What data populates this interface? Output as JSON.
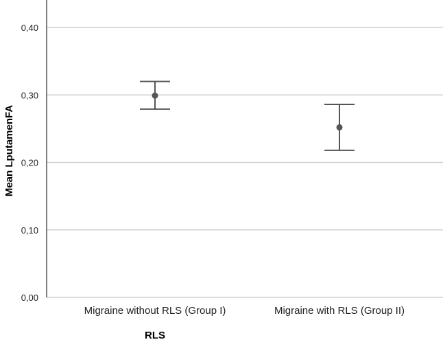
{
  "chart_data": {
    "type": "errorbar",
    "title": "",
    "xlabel": "RLS",
    "ylabel": "Mean LputamenFA",
    "ylim": [
      0,
      0.4
    ],
    "yticks": [
      {
        "value": 0.0,
        "label": "0,00"
      },
      {
        "value": 0.1,
        "label": "0,10"
      },
      {
        "value": 0.2,
        "label": "0,20"
      },
      {
        "value": 0.3,
        "label": "0,30"
      },
      {
        "value": 0.4,
        "label": "0,40"
      }
    ],
    "grid": true,
    "categories": [
      "Migraine without RLS (Group I)",
      "Migraine with RLS (Group II)"
    ],
    "points": [
      {
        "category": "Migraine without RLS (Group I)",
        "mean": 0.299,
        "lower": 0.279,
        "upper": 0.32
      },
      {
        "category": "Migraine with RLS (Group II)",
        "mean": 0.252,
        "lower": 0.218,
        "upper": 0.286
      }
    ],
    "colors": {
      "errorbar": "#555555",
      "grid": "#d0d0d0",
      "axis": "#555555"
    }
  }
}
